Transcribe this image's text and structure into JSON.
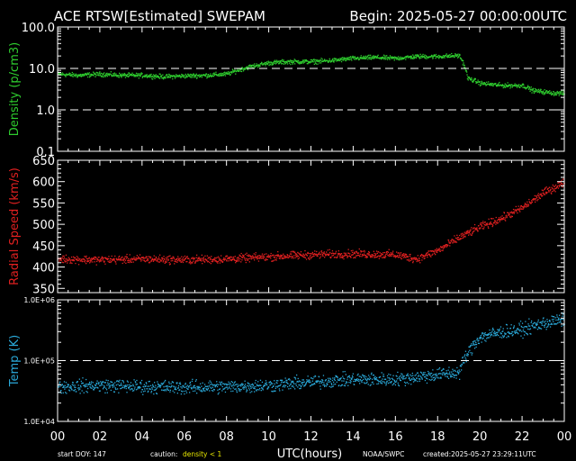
{
  "header": {
    "title": "ACE RTSW[Estimated] SWEPAM",
    "begin": "Begin: 2025-05-27 00:00:00UTC"
  },
  "footer": {
    "start_doy": "start DOY: 147",
    "caution_label": "caution:",
    "caution_value": "density < 1",
    "xlabel": "UTC(hours)",
    "source": "NOAA/SWPC",
    "created": "created:2025-05-27 23:29:11UTC"
  },
  "colors": {
    "density": "#2ecc2e",
    "speed": "#e02020",
    "temp": "#2aa8d8",
    "caution": "#e8e800",
    "axes": "#ffffff",
    "background": "#000000"
  },
  "chart_data": [
    {
      "type": "scatter",
      "title": "ACE RTSW[Estimated] SWEPAM",
      "ylabel": "Density (p/cm3)",
      "yscale": "log",
      "ylim": [
        0.1,
        100
      ],
      "xlim": [
        0,
        24
      ],
      "x_ticks": [
        "00",
        "02",
        "04",
        "06",
        "08",
        "10",
        "12",
        "14",
        "16",
        "18",
        "20",
        "22",
        "00"
      ],
      "y_ticks": [
        "0.1",
        "1.0",
        "10.0",
        "100.0"
      ],
      "reference_lines": [
        1,
        10
      ],
      "trend": [
        [
          0,
          7.5
        ],
        [
          1,
          7
        ],
        [
          2,
          7.5
        ],
        [
          3,
          7
        ],
        [
          4,
          7
        ],
        [
          5,
          6.5
        ],
        [
          6,
          6.8
        ],
        [
          7,
          7
        ],
        [
          8,
          7.5
        ],
        [
          9,
          11
        ],
        [
          10,
          14
        ],
        [
          11,
          15
        ],
        [
          12,
          15
        ],
        [
          13,
          16
        ],
        [
          14,
          18
        ],
        [
          15,
          19
        ],
        [
          16,
          18
        ],
        [
          17,
          20
        ],
        [
          18,
          20
        ],
        [
          19,
          21
        ],
        [
          19.4,
          6
        ],
        [
          20,
          4.5
        ],
        [
          21,
          4
        ],
        [
          22,
          4
        ],
        [
          22.5,
          3
        ],
        [
          23.5,
          2.6
        ]
      ]
    },
    {
      "type": "scatter",
      "ylabel": "Radial Speed (km/s)",
      "yscale": "linear",
      "ylim": [
        340,
        650
      ],
      "xlim": [
        0,
        24
      ],
      "x_ticks": [
        "00",
        "02",
        "04",
        "06",
        "08",
        "10",
        "12",
        "14",
        "16",
        "18",
        "20",
        "22",
        "00"
      ],
      "y_ticks": [
        "350",
        "400",
        "450",
        "500",
        "550",
        "600",
        "650"
      ],
      "trend": [
        [
          0,
          420
        ],
        [
          2,
          418
        ],
        [
          4,
          420
        ],
        [
          6,
          418
        ],
        [
          8,
          420
        ],
        [
          10,
          425
        ],
        [
          12,
          430
        ],
        [
          14,
          432
        ],
        [
          16,
          430
        ],
        [
          17,
          420
        ],
        [
          18,
          440
        ],
        [
          19,
          470
        ],
        [
          20,
          495
        ],
        [
          21,
          515
        ],
        [
          22,
          540
        ],
        [
          23,
          575
        ],
        [
          24,
          600
        ]
      ]
    },
    {
      "type": "scatter",
      "ylabel": "Temp (K)",
      "yscale": "log",
      "ylim": [
        10000,
        1000000
      ],
      "xlim": [
        0,
        24
      ],
      "x_ticks": [
        "00",
        "02",
        "04",
        "06",
        "08",
        "10",
        "12",
        "14",
        "16",
        "18",
        "20",
        "22",
        "00"
      ],
      "y_ticks": [
        "1.0E+04",
        "1.0E+05",
        "1.0E+06"
      ],
      "reference_lines": [
        100000
      ],
      "trend": [
        [
          0,
          38000
        ],
        [
          2,
          40000
        ],
        [
          4,
          38000
        ],
        [
          6,
          37000
        ],
        [
          8,
          38000
        ],
        [
          10,
          40000
        ],
        [
          12,
          45000
        ],
        [
          14,
          50000
        ],
        [
          16,
          50000
        ],
        [
          18,
          60000
        ],
        [
          19,
          65000
        ],
        [
          19.5,
          150000
        ],
        [
          20,
          250000
        ],
        [
          21,
          300000
        ],
        [
          22,
          330000
        ],
        [
          23,
          420000
        ],
        [
          24,
          480000
        ]
      ]
    }
  ]
}
